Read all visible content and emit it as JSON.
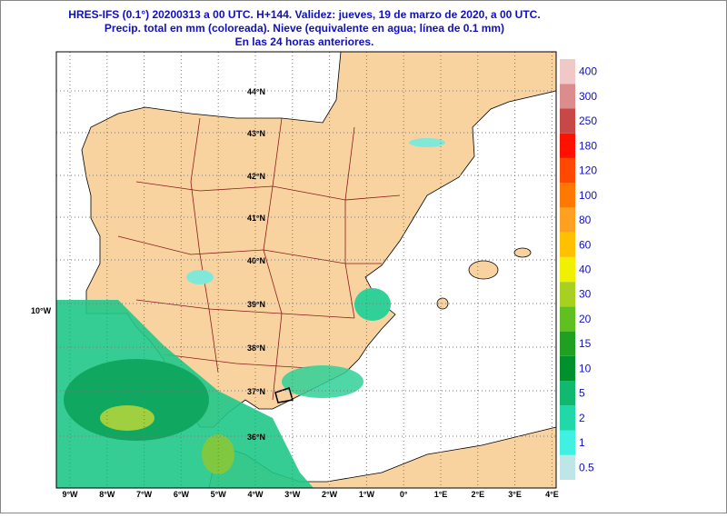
{
  "header": {
    "lines": [
      "HRES-IFS (0.1°) 20200313 a 00 UTC.  H+144. Validez: jueves, 19 de marzo de 2020,  a  00 UTC.",
      "Precip. total en mm (coloreada). Nieve (equivalente en agua; línea de 0.1 mm)",
      "En las 24 horas anteriores."
    ]
  },
  "map": {
    "lat_labels": [
      "44°N",
      "43°N",
      "42°N",
      "41°N",
      "40°N",
      "39°N",
      "38°N",
      "37°N",
      "36°N"
    ],
    "lon_labels": [
      "9°W",
      "8°W",
      "7°W",
      "6°W",
      "5°W",
      "4°W",
      "3°W",
      "2°W",
      "1°W",
      "0°",
      "1°E",
      "2°E",
      "3°E",
      "4°E"
    ],
    "left_label": "10°W"
  },
  "legend": {
    "values": [
      0.5,
      1,
      2,
      5,
      10,
      15,
      20,
      30,
      40,
      60,
      80,
      100,
      120,
      180,
      250,
      300,
      400
    ],
    "colors": [
      "#bfe6e6",
      "#40f0e0",
      "#20d8a8",
      "#10b870",
      "#00902c",
      "#20a020",
      "#60c020",
      "#a8d020",
      "#f0f000",
      "#ffc000",
      "#ffa020",
      "#ff7800",
      "#ff4800",
      "#ff1000",
      "#c84848",
      "#dc8c8c",
      "#f0c8c8"
    ]
  }
}
